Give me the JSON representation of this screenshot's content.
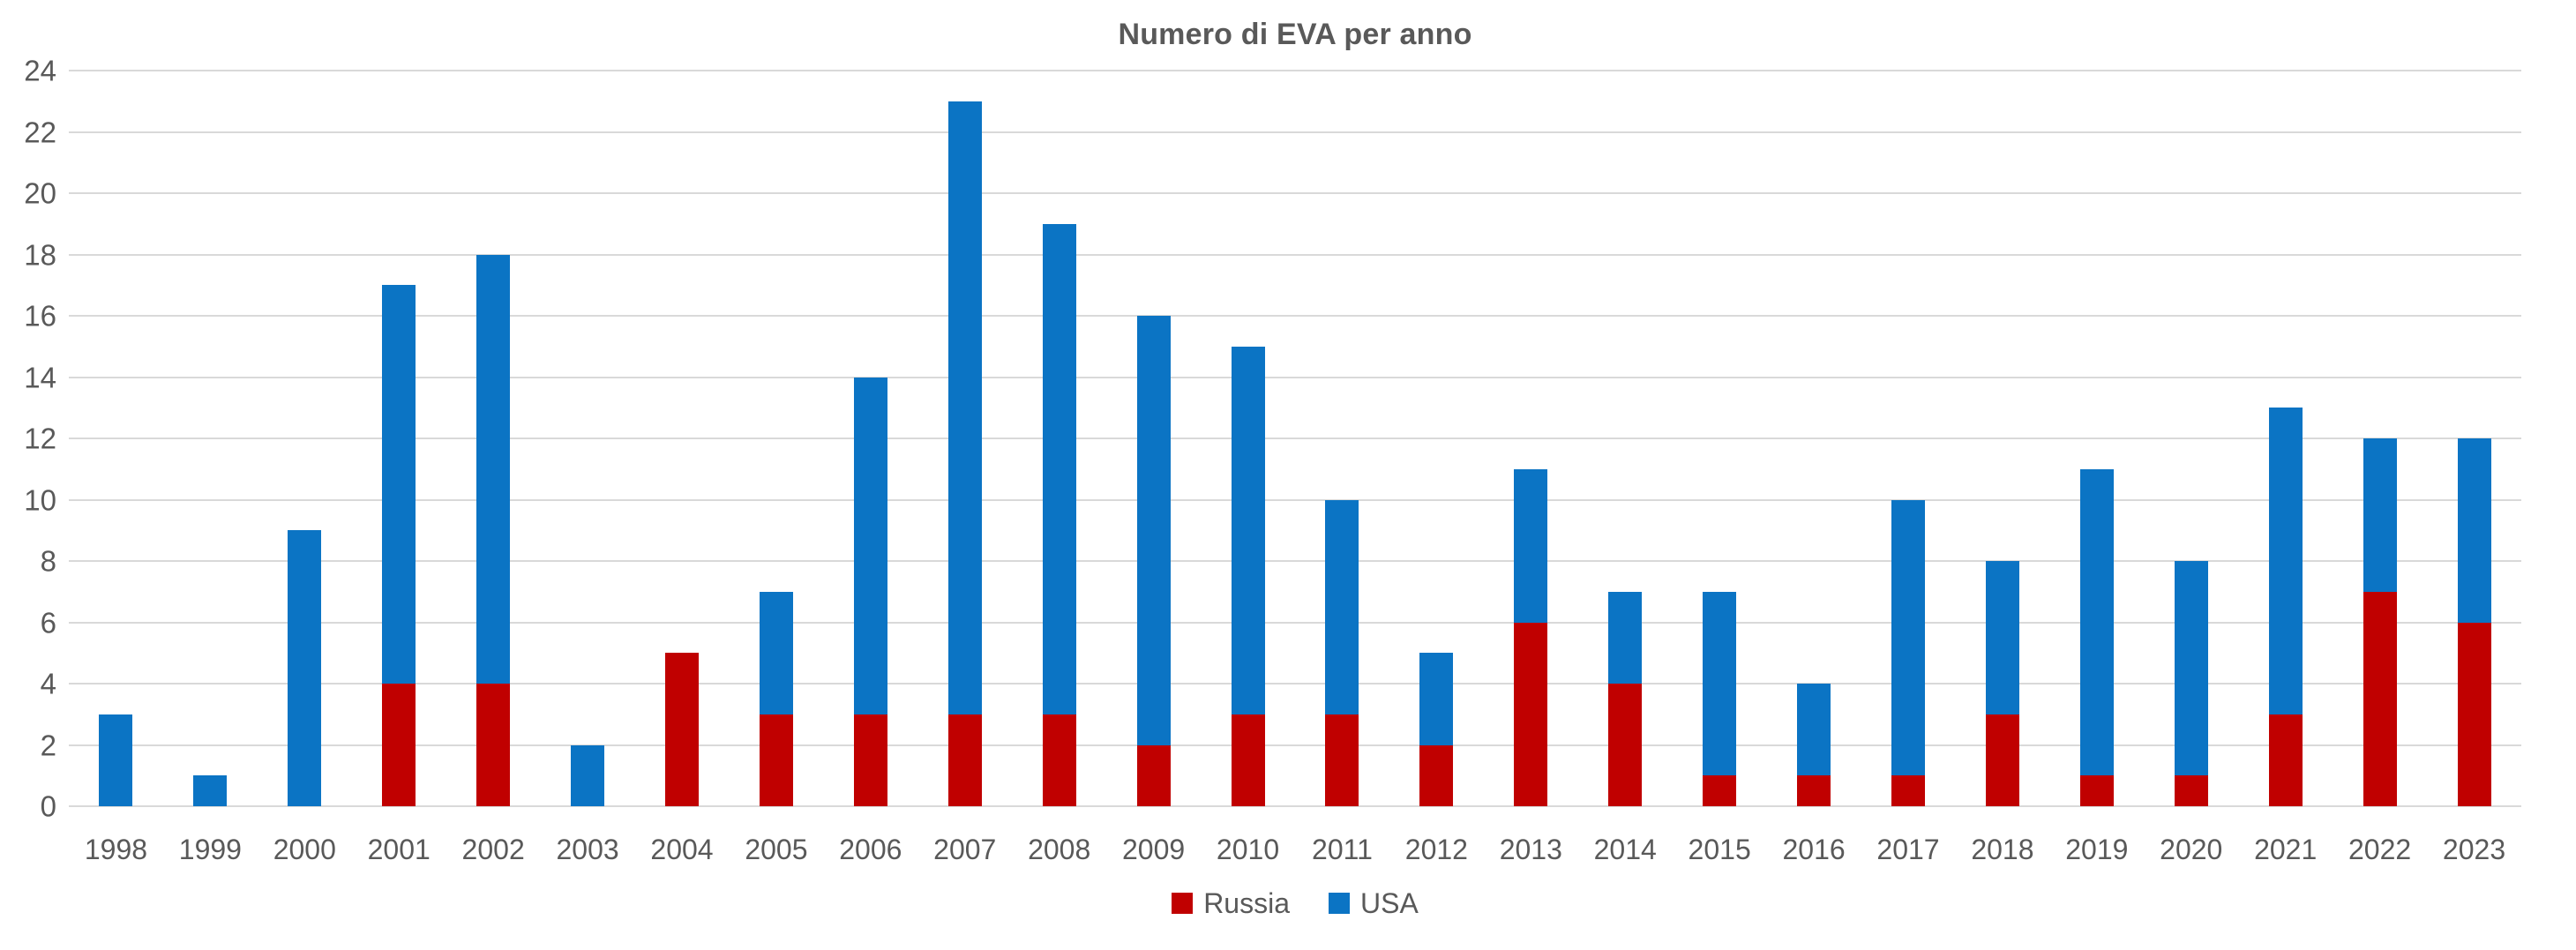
{
  "title": "Numero di EVA per anno",
  "colors": {
    "russia": "#C00000",
    "usa": "#0B74C4",
    "gridline": "#D9D9D9",
    "text": "#595959",
    "background": "#FFFFFF"
  },
  "legend": {
    "position": "bottom-center",
    "items": [
      {
        "label": "Russia",
        "color": "#C00000",
        "swatch": "square-icon"
      },
      {
        "label": "USA",
        "color": "#0B74C4",
        "swatch": "square-icon"
      }
    ]
  },
  "y_axis": {
    "ticks": [
      "0",
      "2",
      "4",
      "6",
      "8",
      "10",
      "12",
      "14",
      "16",
      "18",
      "20",
      "22",
      "24"
    ]
  },
  "chart_data": {
    "type": "bar",
    "stacked": true,
    "title": "Numero di EVA per anno",
    "xlabel": "",
    "ylabel": "",
    "categories": [
      "1998",
      "1999",
      "2000",
      "2001",
      "2002",
      "2003",
      "2004",
      "2005",
      "2006",
      "2007",
      "2008",
      "2009",
      "2010",
      "2011",
      "2012",
      "2013",
      "2014",
      "2015",
      "2016",
      "2017",
      "2018",
      "2019",
      "2020",
      "2021",
      "2022",
      "2023"
    ],
    "series": [
      {
        "name": "Russia",
        "color": "#C00000",
        "values": [
          0,
          0,
          0,
          4,
          4,
          0,
          5,
          3,
          3,
          3,
          3,
          2,
          3,
          3,
          2,
          6,
          4,
          1,
          1,
          1,
          3,
          1,
          1,
          3,
          7,
          6
        ]
      },
      {
        "name": "USA",
        "color": "#0B74C4",
        "values": [
          3,
          1,
          9,
          13,
          14,
          2,
          0,
          4,
          11,
          20,
          16,
          14,
          12,
          7,
          3,
          5,
          3,
          6,
          3,
          9,
          5,
          10,
          7,
          10,
          5,
          6
        ]
      }
    ],
    "totals": [
      3,
      1,
      9,
      17,
      18,
      2,
      5,
      7,
      14,
      23,
      19,
      16,
      15,
      10,
      5,
      11,
      7,
      7,
      4,
      10,
      8,
      11,
      8,
      13,
      12,
      12
    ],
    "ylim": [
      0,
      24
    ],
    "ytick_step": 2,
    "grid": true,
    "legend_position": "bottom"
  }
}
